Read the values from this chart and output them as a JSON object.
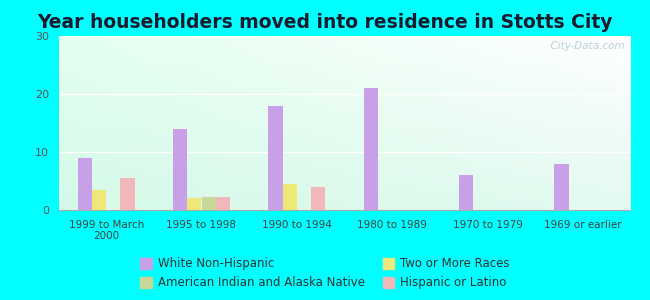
{
  "title": "Year householders moved into residence in Stotts City",
  "categories": [
    "1999 to March\n2000",
    "1995 to 1998",
    "1990 to 1994",
    "1980 to 1989",
    "1970 to 1979",
    "1969 or earlier"
  ],
  "series": {
    "White Non-Hispanic": [
      9,
      14,
      18,
      21,
      6,
      8
    ],
    "Two or More Races": [
      3.5,
      2,
      4.5,
      0,
      0,
      0
    ],
    "American Indian and Alaska Native": [
      0,
      2.2,
      0,
      0,
      0,
      0
    ],
    "Hispanic or Latino": [
      5.5,
      2.2,
      4,
      0,
      0,
      0
    ]
  },
  "colors": {
    "White Non-Hispanic": "#c8a0e8",
    "Two or More Races": "#ede878",
    "American Indian and Alaska Native": "#c8d898",
    "Hispanic or Latino": "#f0b8b8"
  },
  "ylim": [
    0,
    30
  ],
  "yticks": [
    0,
    10,
    20,
    30
  ],
  "bar_width": 0.15,
  "outer_bg": "#00ffff",
  "watermark": "  City-Data.com",
  "legend_fontsize": 8.5,
  "title_fontsize": 13.5
}
